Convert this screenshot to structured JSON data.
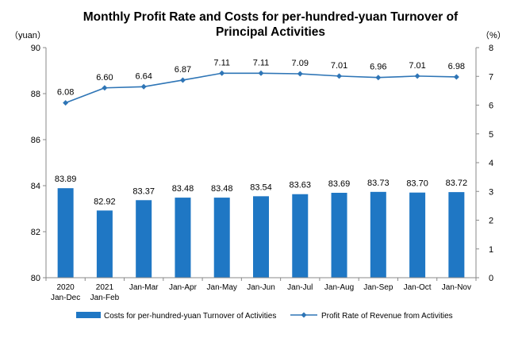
{
  "chart_data": {
    "type": "bar+line",
    "title_lines": [
      "Monthly Profit Rate and Costs for per-hundred-yuan Turnover of",
      "Principal Activities"
    ],
    "left_unit": "（yuan）",
    "right_unit": "（%）",
    "categories": [
      [
        "2020",
        "Jan-Dec"
      ],
      [
        "2021",
        "Jan-Feb"
      ],
      [
        "Jan-Mar"
      ],
      [
        "Jan-Apr"
      ],
      [
        "Jan-May"
      ],
      [
        "Jan-Jun"
      ],
      [
        "Jan-Jul"
      ],
      [
        "Jan-Aug"
      ],
      [
        "Jan-Sep"
      ],
      [
        "Jan-Oct"
      ],
      [
        "Jan-Nov"
      ]
    ],
    "bar_series": {
      "name": "Costs for per-hundred-yuan Turnover of Activities",
      "color": "#1f77c4",
      "values": [
        83.89,
        82.92,
        83.37,
        83.48,
        83.48,
        83.54,
        83.63,
        83.69,
        83.73,
        83.7,
        83.72
      ],
      "labels": [
        "83.89",
        "82.92",
        "83.37",
        "83.48",
        "83.48",
        "83.54",
        "83.63",
        "83.69",
        "83.73",
        "83.70",
        "83.72"
      ]
    },
    "line_series": {
      "name": "Profit Rate of Revenue from Activities",
      "color": "#2e75b6",
      "values": [
        6.08,
        6.6,
        6.64,
        6.87,
        7.11,
        7.11,
        7.09,
        7.01,
        6.96,
        7.01,
        6.98
      ],
      "labels": [
        "6.08",
        "6.60",
        "6.64",
        "6.87",
        "7.11",
        "7.11",
        "7.09",
        "7.01",
        "6.96",
        "7.01",
        "6.98"
      ]
    },
    "y_left": {
      "min": 80,
      "max": 90,
      "ticks": [
        "80",
        "82",
        "84",
        "86",
        "88",
        "90"
      ]
    },
    "y_right": {
      "min": 0,
      "max": 8,
      "ticks": [
        "0",
        "1",
        "2",
        "3",
        "4",
        "5",
        "6",
        "7",
        "8"
      ]
    },
    "grid": false,
    "legend_position": "bottom"
  }
}
